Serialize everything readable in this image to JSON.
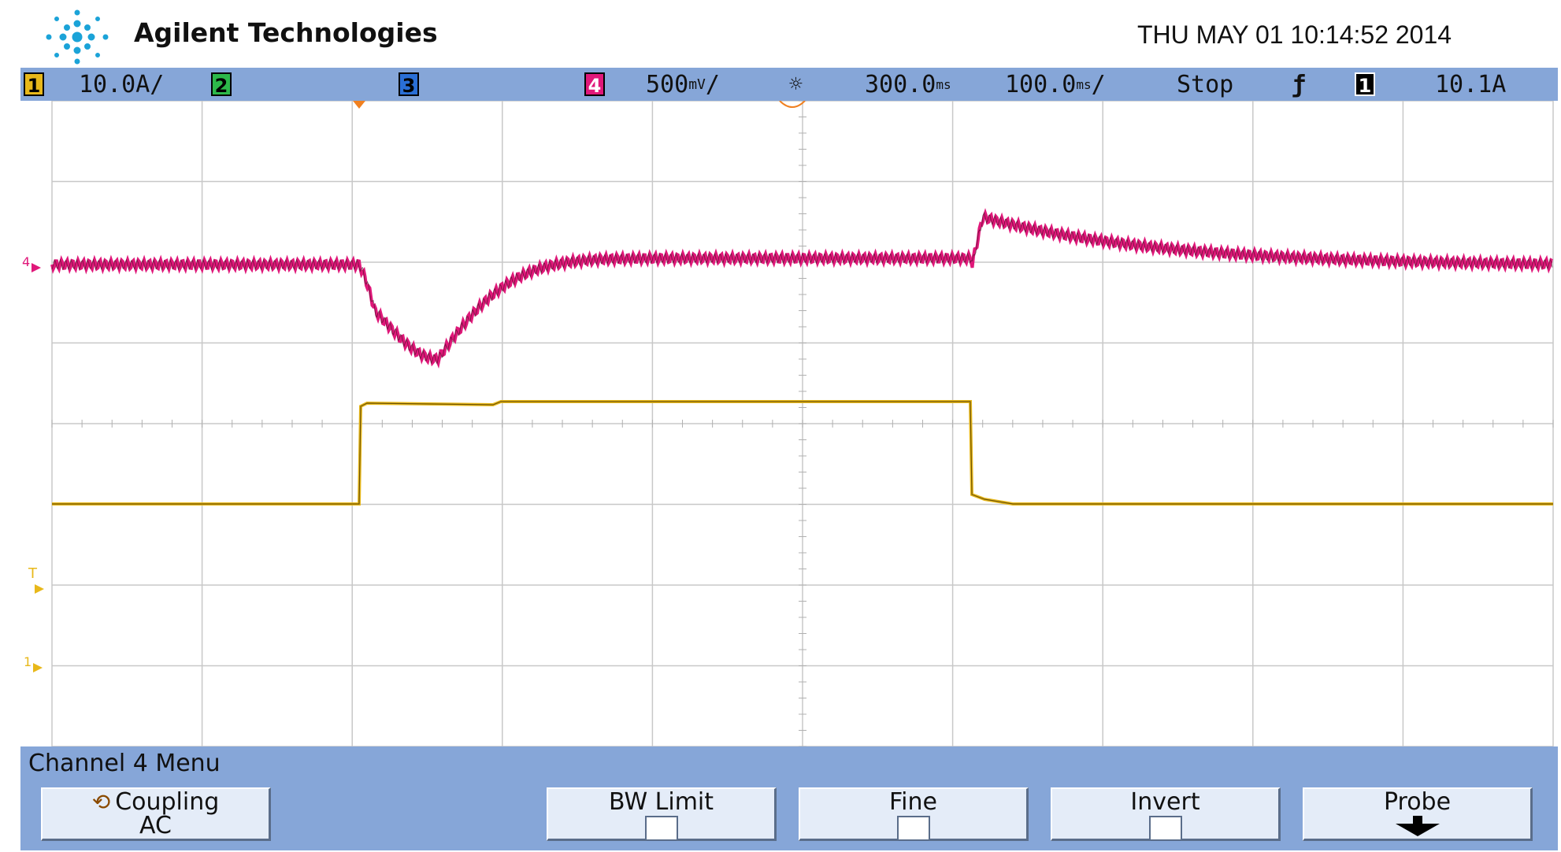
{
  "header": {
    "brand": "Agilent Technologies",
    "datetime": "THU MAY 01 10:14:52 2014"
  },
  "status": {
    "ch1_num": "1",
    "ch1_scale": "10.0A/",
    "ch2_num": "2",
    "ch3_num": "3",
    "ch4_num": "4",
    "ch4_scale": "500",
    "ch4_scale_suffix": "/",
    "time_delay": "300.0",
    "time_scale": "100.0",
    "time_scale_suffix": "/",
    "run_state": "Stop",
    "trig_source": "1",
    "trig_level": "10.1A"
  },
  "markers": {
    "ch4": "4",
    "trigger": "T",
    "ch1": "1"
  },
  "menu": {
    "title": "Channel  4  Menu",
    "coupling_label": "Coupling",
    "coupling_value": "AC",
    "bw_limit": "BW Limit",
    "fine": "Fine",
    "invert": "Invert",
    "probe": "Probe"
  },
  "colors": {
    "ch1": "#e8b81a",
    "ch2": "#2db84a",
    "ch3": "#2a6fd6",
    "ch4": "#e0187a",
    "bar": "#86a6d8"
  }
}
